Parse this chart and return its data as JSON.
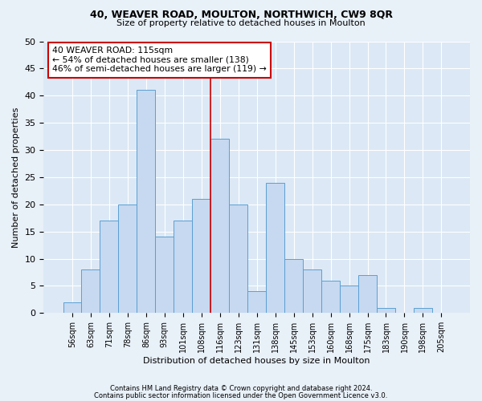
{
  "title1": "40, WEAVER ROAD, MOULTON, NORTHWICH, CW9 8QR",
  "title2": "Size of property relative to detached houses in Moulton",
  "xlabel": "Distribution of detached houses by size in Moulton",
  "ylabel": "Number of detached properties",
  "bins": [
    "56sqm",
    "63sqm",
    "71sqm",
    "78sqm",
    "86sqm",
    "93sqm",
    "101sqm",
    "108sqm",
    "116sqm",
    "123sqm",
    "131sqm",
    "138sqm",
    "145sqm",
    "153sqm",
    "160sqm",
    "168sqm",
    "175sqm",
    "183sqm",
    "190sqm",
    "198sqm",
    "205sqm"
  ],
  "values": [
    2,
    8,
    17,
    20,
    41,
    14,
    17,
    21,
    32,
    20,
    4,
    24,
    10,
    8,
    6,
    5,
    7,
    1,
    0,
    1,
    0
  ],
  "bar_color": "#c6d9f0",
  "bar_edge_color": "#5a9fd4",
  "ref_line_index": 8,
  "reference_line_color": "#cc0000",
  "annotation_line1": "40 WEAVER ROAD: 115sqm",
  "annotation_line2": "← 54% of detached houses are smaller (138)",
  "annotation_line3": "46% of semi-detached houses are larger (119) →",
  "annotation_box_color": "#ffffff",
  "annotation_box_edge_color": "#cc0000",
  "ylim": [
    0,
    50
  ],
  "yticks": [
    0,
    5,
    10,
    15,
    20,
    25,
    30,
    35,
    40,
    45,
    50
  ],
  "footer1": "Contains HM Land Registry data © Crown copyright and database right 2024.",
  "footer2": "Contains public sector information licensed under the Open Government Licence v3.0.",
  "bg_color": "#e8f0f8",
  "plot_bg_color": "#dce8f5",
  "grid_color": "#ffffff"
}
